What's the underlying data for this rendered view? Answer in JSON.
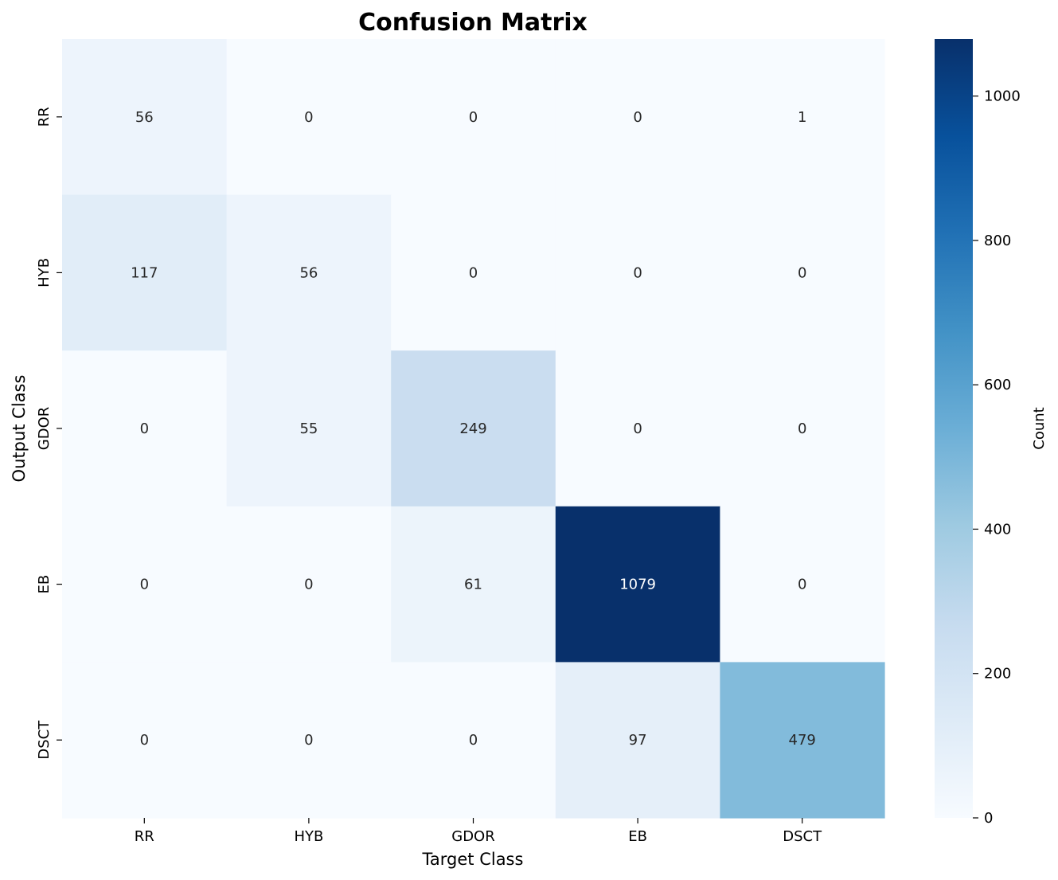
{
  "chart_data": {
    "type": "heatmap",
    "title": "Confusion Matrix",
    "xlabel": "Target Class",
    "ylabel": "Output Class",
    "x_categories": [
      "RR",
      "HYB",
      "GDOR",
      "EB",
      "DSCT"
    ],
    "y_categories": [
      "RR",
      "HYB",
      "GDOR",
      "EB",
      "DSCT"
    ],
    "matrix": [
      [
        56,
        0,
        0,
        0,
        1
      ],
      [
        117,
        56,
        0,
        0,
        0
      ],
      [
        0,
        55,
        249,
        0,
        0
      ],
      [
        0,
        0,
        61,
        1079,
        0
      ],
      [
        0,
        0,
        0,
        97,
        479
      ]
    ],
    "colormap": "Blues",
    "colorbar": {
      "label": "Count",
      "range": [
        0,
        1079
      ],
      "ticks": [
        0,
        200,
        400,
        600,
        800,
        1000
      ]
    }
  }
}
